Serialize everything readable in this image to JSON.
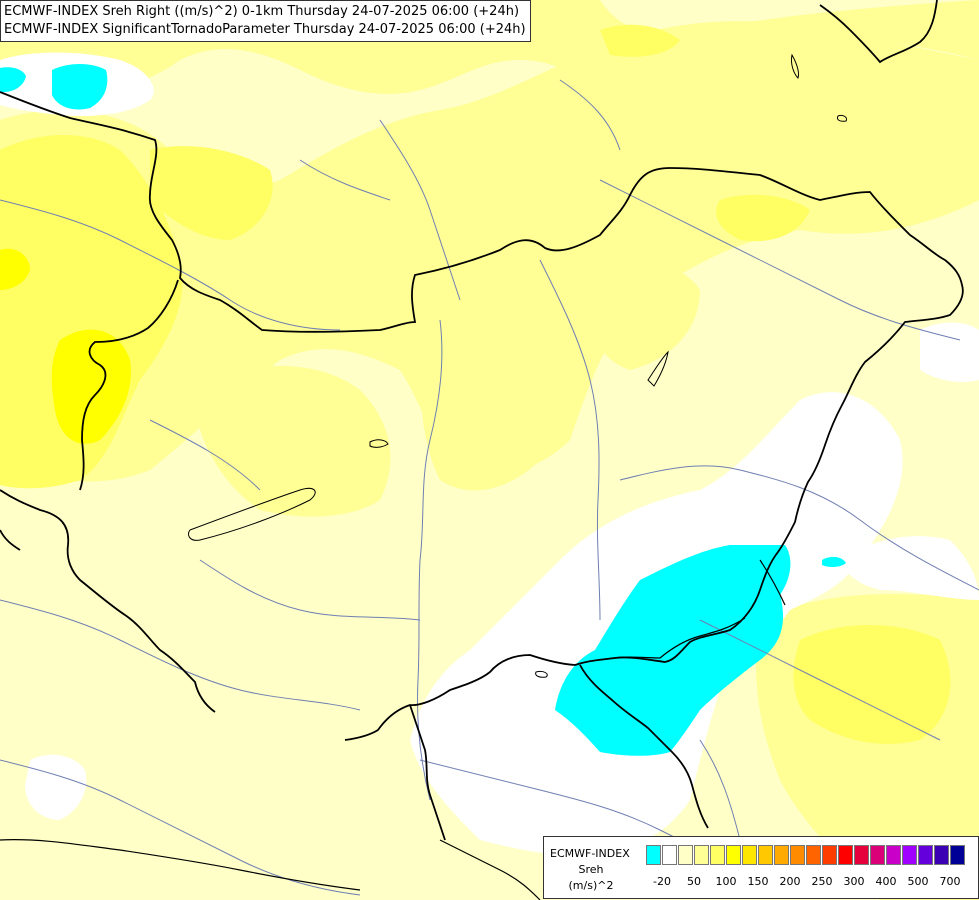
{
  "title": {
    "line1": "ECMWF-INDEX Sreh Right ((m/s)^2) 0-1km Thursday 24-07-2025 06:00 (+24h)",
    "line2": "ECMWF-INDEX SignificantTornadoParameter Thursday 24-07-2025 06:00 (+24h)"
  },
  "legend": {
    "model": "ECMWF-INDEX",
    "param": "Sreh",
    "unit": "(m/s)^2",
    "colors": [
      "#00ffff",
      "#ffffff",
      "#ffffc8",
      "#ffff96",
      "#ffff64",
      "#ffff00",
      "#ffe600",
      "#ffc800",
      "#ffaa00",
      "#ff8c00",
      "#ff6400",
      "#ff3c00",
      "#ff0000",
      "#e6003c",
      "#dc0078",
      "#c800c8",
      "#a000ff",
      "#6400dc",
      "#3c00b4",
      "#000096"
    ],
    "ticks": [
      "-20",
      "50",
      "100",
      "150",
      "200",
      "250",
      "300",
      "400",
      "500",
      "700"
    ]
  },
  "map": {
    "colors": {
      "background": "#ffffc8",
      "light_yellow": "#ffff96",
      "yellow": "#ffff64",
      "bright_yellow": "#ffff00",
      "white": "#ffffff",
      "cyan": "#00ffff",
      "border": "#000000",
      "river": "#6f7fb2"
    }
  }
}
